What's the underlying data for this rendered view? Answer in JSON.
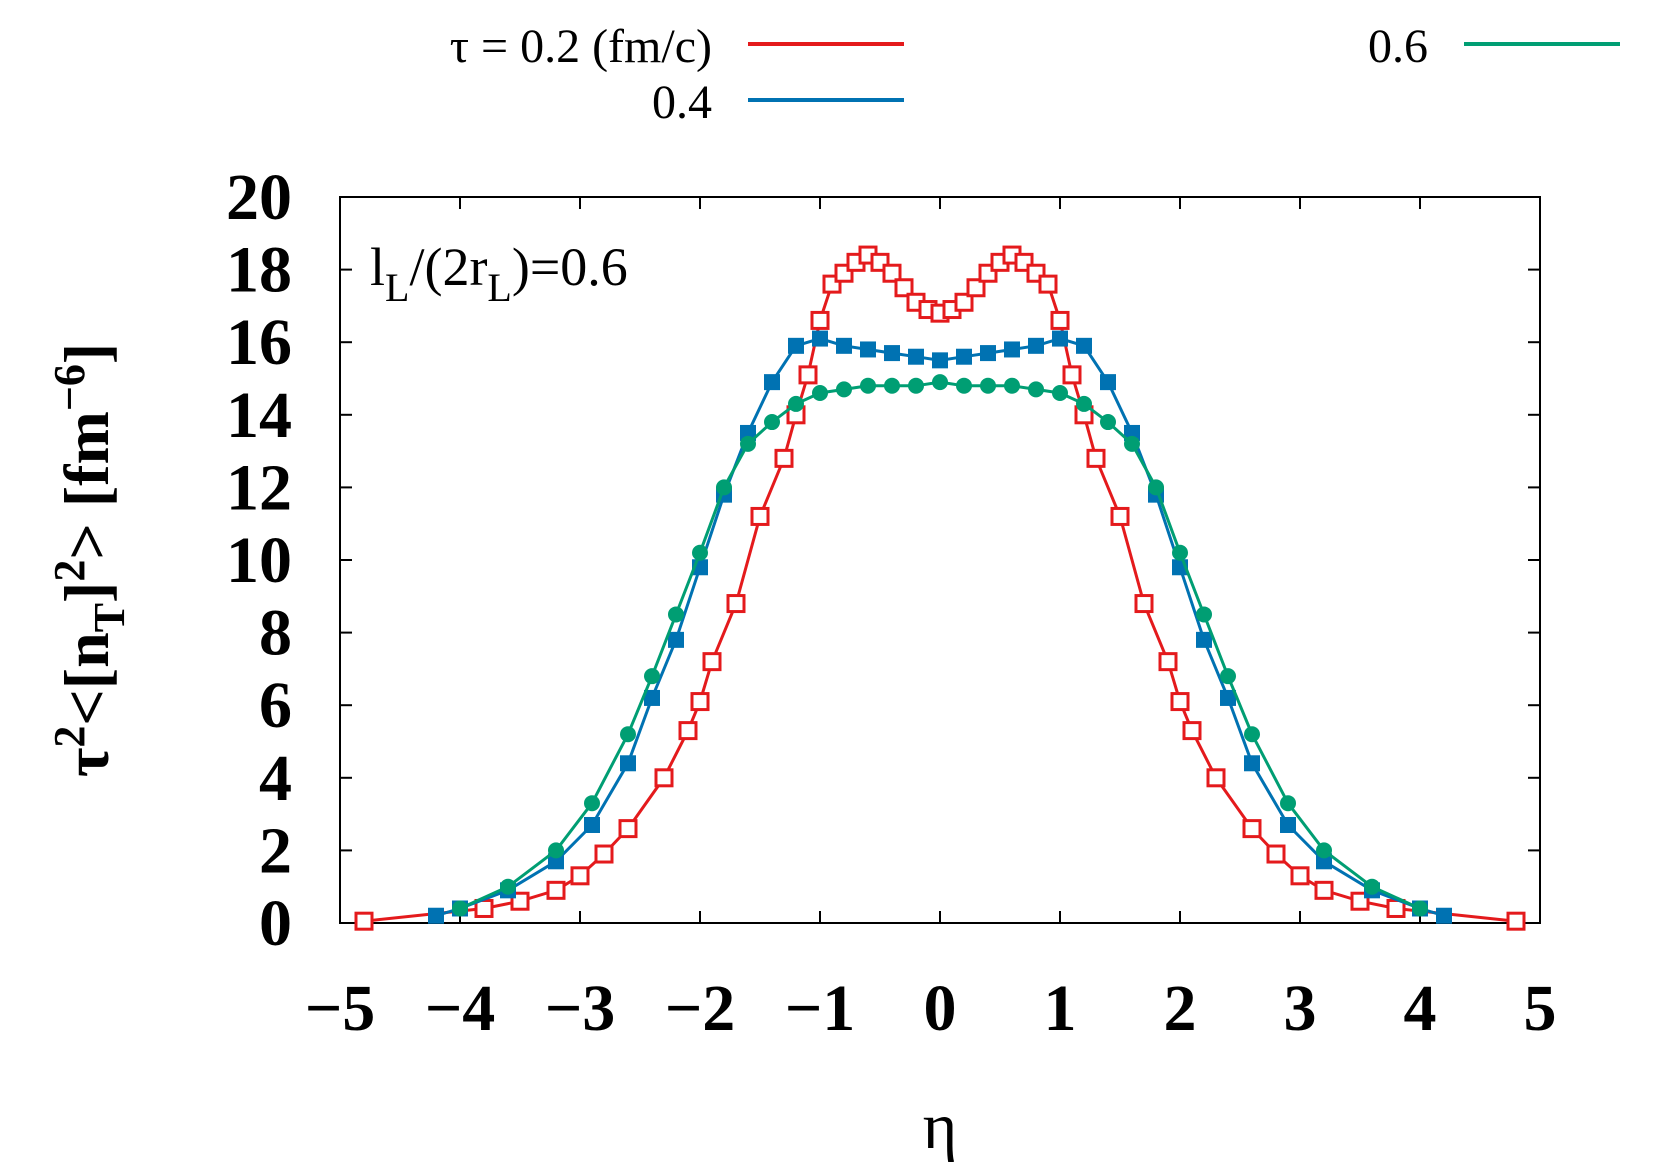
{
  "chart_data": {
    "type": "line",
    "annotation": "l_L/(2r_L)=0.6",
    "xlabel": "η",
    "ylabel": "τ²<[n_T]²> [fm⁻⁶]",
    "xlim": [
      -5,
      5
    ],
    "ylim": [
      0,
      20
    ],
    "xticks": [
      "−5",
      "−4",
      "−3",
      "−2",
      "−1",
      "0",
      "1",
      "2",
      "3",
      "4",
      "5"
    ],
    "yticks": [
      "0",
      "2",
      "4",
      "6",
      "8",
      "10",
      "12",
      "14",
      "16",
      "18",
      "20"
    ],
    "grid": false,
    "legend": {
      "position": "top",
      "entries": [
        "τ = 0.2 (fm/c)",
        "0.4",
        "0.6"
      ]
    },
    "series": [
      {
        "name": "τ = 0.2 (fm/c)",
        "color": "#e41a1c",
        "marker": "open-square",
        "x": [
          -4.8,
          -3.8,
          -3.5,
          -3.2,
          -3.0,
          -2.8,
          -2.6,
          -2.3,
          -2.1,
          -2.0,
          -1.9,
          -1.7,
          -1.5,
          -1.3,
          -1.2,
          -1.1,
          -1.0,
          -0.9,
          -0.8,
          -0.7,
          -0.6,
          -0.5,
          -0.4,
          -0.3,
          -0.2,
          -0.1,
          0.0,
          0.1,
          0.2,
          0.3,
          0.4,
          0.5,
          0.6,
          0.7,
          0.8,
          0.9,
          1.0,
          1.1,
          1.2,
          1.3,
          1.5,
          1.7,
          1.9,
          2.0,
          2.1,
          2.3,
          2.6,
          2.8,
          3.0,
          3.2,
          3.5,
          3.8,
          4.8
        ],
        "y": [
          0.05,
          0.4,
          0.6,
          0.9,
          1.3,
          1.9,
          2.6,
          4.0,
          5.3,
          6.1,
          7.2,
          8.8,
          11.2,
          12.8,
          14.0,
          15.1,
          16.6,
          17.6,
          17.9,
          18.2,
          18.4,
          18.2,
          17.9,
          17.5,
          17.1,
          16.9,
          16.8,
          16.9,
          17.1,
          17.5,
          17.9,
          18.2,
          18.4,
          18.2,
          17.9,
          17.6,
          16.6,
          15.1,
          14.0,
          12.8,
          11.2,
          8.8,
          7.2,
          6.1,
          5.3,
          4.0,
          2.6,
          1.9,
          1.3,
          0.9,
          0.6,
          0.4,
          0.05
        ]
      },
      {
        "name": "0.4",
        "color": "#0072b2",
        "marker": "filled-square",
        "x": [
          -4.2,
          -4.0,
          -3.6,
          -3.2,
          -2.9,
          -2.6,
          -2.4,
          -2.2,
          -2.0,
          -1.8,
          -1.6,
          -1.4,
          -1.2,
          -1.0,
          -0.8,
          -0.6,
          -0.4,
          -0.2,
          0.0,
          0.2,
          0.4,
          0.6,
          0.8,
          1.0,
          1.2,
          1.4,
          1.6,
          1.8,
          2.0,
          2.2,
          2.4,
          2.6,
          2.9,
          3.2,
          3.6,
          4.0,
          4.2
        ],
        "y": [
          0.2,
          0.4,
          0.9,
          1.7,
          2.7,
          4.4,
          6.2,
          7.8,
          9.8,
          11.8,
          13.5,
          14.9,
          15.9,
          16.1,
          15.9,
          15.8,
          15.7,
          15.6,
          15.5,
          15.6,
          15.7,
          15.8,
          15.9,
          16.1,
          15.9,
          14.9,
          13.5,
          11.8,
          9.8,
          7.8,
          6.2,
          4.4,
          2.7,
          1.7,
          0.9,
          0.4,
          0.2
        ]
      },
      {
        "name": "0.6",
        "color": "#009e73",
        "marker": "filled-circle",
        "x": [
          -4.0,
          -3.6,
          -3.2,
          -2.9,
          -2.6,
          -2.4,
          -2.2,
          -2.0,
          -1.8,
          -1.6,
          -1.4,
          -1.2,
          -1.0,
          -0.8,
          -0.6,
          -0.4,
          -0.2,
          0.0,
          0.2,
          0.4,
          0.6,
          0.8,
          1.0,
          1.2,
          1.4,
          1.6,
          1.8,
          2.0,
          2.2,
          2.4,
          2.6,
          2.9,
          3.2,
          3.6,
          4.0
        ],
        "y": [
          0.4,
          1.0,
          2.0,
          3.3,
          5.2,
          6.8,
          8.5,
          10.2,
          12.0,
          13.2,
          13.8,
          14.3,
          14.6,
          14.7,
          14.8,
          14.8,
          14.8,
          14.9,
          14.8,
          14.8,
          14.8,
          14.7,
          14.6,
          14.3,
          13.8,
          13.2,
          12.0,
          10.2,
          8.5,
          6.8,
          5.2,
          3.3,
          2.0,
          1.0,
          0.4
        ]
      }
    ]
  }
}
